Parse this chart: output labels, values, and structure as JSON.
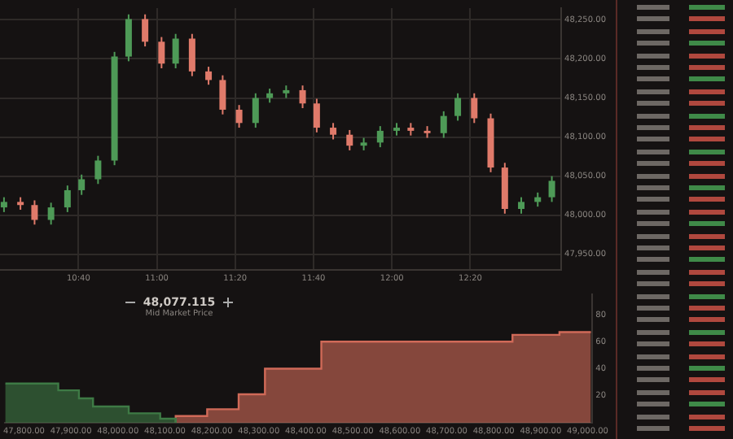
{
  "chart_data": [
    {
      "type": "candlestick",
      "x": [
        10.35,
        10.42,
        10.48,
        10.55,
        10.62,
        10.68,
        10.75,
        10.82,
        10.88,
        10.95,
        11.02,
        11.08,
        11.15,
        11.22,
        11.28,
        11.35,
        11.42,
        11.48,
        11.55,
        11.62,
        11.68,
        11.75,
        11.82,
        11.88,
        11.95,
        12.02,
        12.08,
        12.15,
        12.22,
        12.28,
        12.35,
        12.42,
        12.48,
        12.55,
        12.62,
        12.68
      ],
      "ohlc": [
        [
          48010,
          48023,
          48004,
          48017
        ],
        [
          48017,
          48023,
          48007,
          48013
        ],
        [
          48013,
          48019,
          47988,
          47994
        ],
        [
          47994,
          48016,
          47988,
          48010
        ],
        [
          48010,
          48038,
          48004,
          48032
        ],
        [
          48032,
          48052,
          48026,
          48046
        ],
        [
          48046,
          48076,
          48040,
          48070
        ],
        [
          48070,
          48209,
          48064,
          48203
        ],
        [
          48203,
          48257,
          48197,
          48251
        ],
        [
          48251,
          48257,
          48216,
          48222
        ],
        [
          48222,
          48228,
          48188,
          48194
        ],
        [
          48194,
          48232,
          48188,
          48226
        ],
        [
          48226,
          48232,
          48178,
          48184
        ],
        [
          48184,
          48190,
          48167,
          48173
        ],
        [
          48173,
          48179,
          48129,
          48135
        ],
        [
          48135,
          48141,
          48112,
          48118
        ],
        [
          48118,
          48156,
          48112,
          48150
        ],
        [
          48150,
          48162,
          48144,
          48156
        ],
        [
          48156,
          48166,
          48150,
          48160
        ],
        [
          48160,
          48166,
          48137,
          48143
        ],
        [
          48143,
          48149,
          48106,
          48112
        ],
        [
          48112,
          48118,
          48097,
          48103
        ],
        [
          48103,
          48109,
          48083,
          48089
        ],
        [
          48089,
          48099,
          48083,
          48093
        ],
        [
          48093,
          48114,
          48087,
          48108
        ],
        [
          48108,
          48118,
          48102,
          48112
        ],
        [
          48112,
          48118,
          48102,
          48108
        ],
        [
          48108,
          48114,
          48099,
          48105
        ],
        [
          48105,
          48133,
          48099,
          48127
        ],
        [
          48127,
          48156,
          48121,
          48150
        ],
        [
          48150,
          48156,
          48118,
          48124
        ],
        [
          48124,
          48130,
          48055,
          48061
        ],
        [
          48061,
          48067,
          48002,
          48008
        ],
        [
          48008,
          48023,
          48002,
          48017
        ],
        [
          48017,
          48029,
          48011,
          48023
        ],
        [
          48023,
          48050,
          48017,
          48044
        ]
      ],
      "colors": [
        "#4e9a57",
        "#e07a6a",
        "#e07a6a",
        "#4e9a57",
        "#4e9a57",
        "#4e9a57",
        "#4e9a57",
        "#4e9a57",
        "#4e9a57",
        "#e07a6a",
        "#e07a6a",
        "#4e9a57",
        "#e07a6a",
        "#e07a6a",
        "#e07a6a",
        "#e07a6a",
        "#4e9a57",
        "#4e9a57",
        "#4e9a57",
        "#e07a6a",
        "#e07a6a",
        "#e07a6a",
        "#e07a6a",
        "#4e9a57",
        "#4e9a57",
        "#4e9a57",
        "#e07a6a",
        "#e07a6a",
        "#4e9a57",
        "#4e9a57",
        "#e07a6a",
        "#e07a6a",
        "#e07a6a",
        "#4e9a57",
        "#4e9a57",
        "#4e9a57"
      ],
      "xlim": [
        10.333,
        12.72
      ],
      "xticks": [
        {
          "value": 10.6667,
          "label": "10:40"
        },
        {
          "value": 11,
          "label": "11:00"
        },
        {
          "value": 11.3333,
          "label": "11:20"
        },
        {
          "value": 11.6667,
          "label": "11:40"
        },
        {
          "value": 12,
          "label": "12:00"
        },
        {
          "value": 12.3333,
          "label": "12:20"
        }
      ],
      "ylim": [
        47930,
        48265
      ],
      "yticks": [
        {
          "value": 47950,
          "label": "47,950.00"
        },
        {
          "value": 48000,
          "label": "48,000.00"
        },
        {
          "value": 48050,
          "label": "48,050.00"
        },
        {
          "value": 48100,
          "label": "48,100.00"
        },
        {
          "value": 48150,
          "label": "48,150.00"
        },
        {
          "value": 48200,
          "label": "48,200.00"
        },
        {
          "value": 48250,
          "label": "48,250.00"
        }
      ],
      "grid": true
    },
    {
      "type": "step",
      "series": [
        {
          "color": "#3e7a45",
          "x": [
            47760,
            47873,
            47917,
            47947,
            48023,
            48090,
            48123
          ],
          "values": [
            29,
            24,
            18,
            12,
            7,
            3,
            0
          ]
        },
        {
          "color": "#d06a58",
          "x": [
            48123,
            48190,
            48257,
            48313,
            48433,
            48840,
            48940,
            49007
          ],
          "values": [
            0,
            5,
            10,
            21,
            40,
            60,
            65,
            67
          ]
        }
      ],
      "xlim": [
        47760,
        49010
      ],
      "xticks": [
        {
          "value": 47800,
          "label": "47,800.00"
        },
        {
          "value": 47900,
          "label": "47,900.00"
        },
        {
          "value": 48000,
          "label": "48,000.00"
        },
        {
          "value": 48100,
          "label": "48,100.00"
        },
        {
          "value": 48200,
          "label": "48,200.00"
        },
        {
          "value": 48300,
          "label": "48,300.00"
        },
        {
          "value": 48400,
          "label": "48,400.00"
        },
        {
          "value": 48500,
          "label": "48,500.00"
        },
        {
          "value": 48600,
          "label": "48,600.00"
        },
        {
          "value": 48700,
          "label": "48,700.00"
        },
        {
          "value": 48800,
          "label": "48,800.00"
        },
        {
          "value": 48900,
          "label": "48,900.00"
        },
        {
          "value": 49000,
          "label": "49,000.00"
        }
      ],
      "ylim": [
        0,
        95
      ],
      "yticks": [
        20,
        40,
        60,
        80
      ],
      "annotations": [
        "48,077.115",
        "Mid Market Price"
      ]
    }
  ]
}
